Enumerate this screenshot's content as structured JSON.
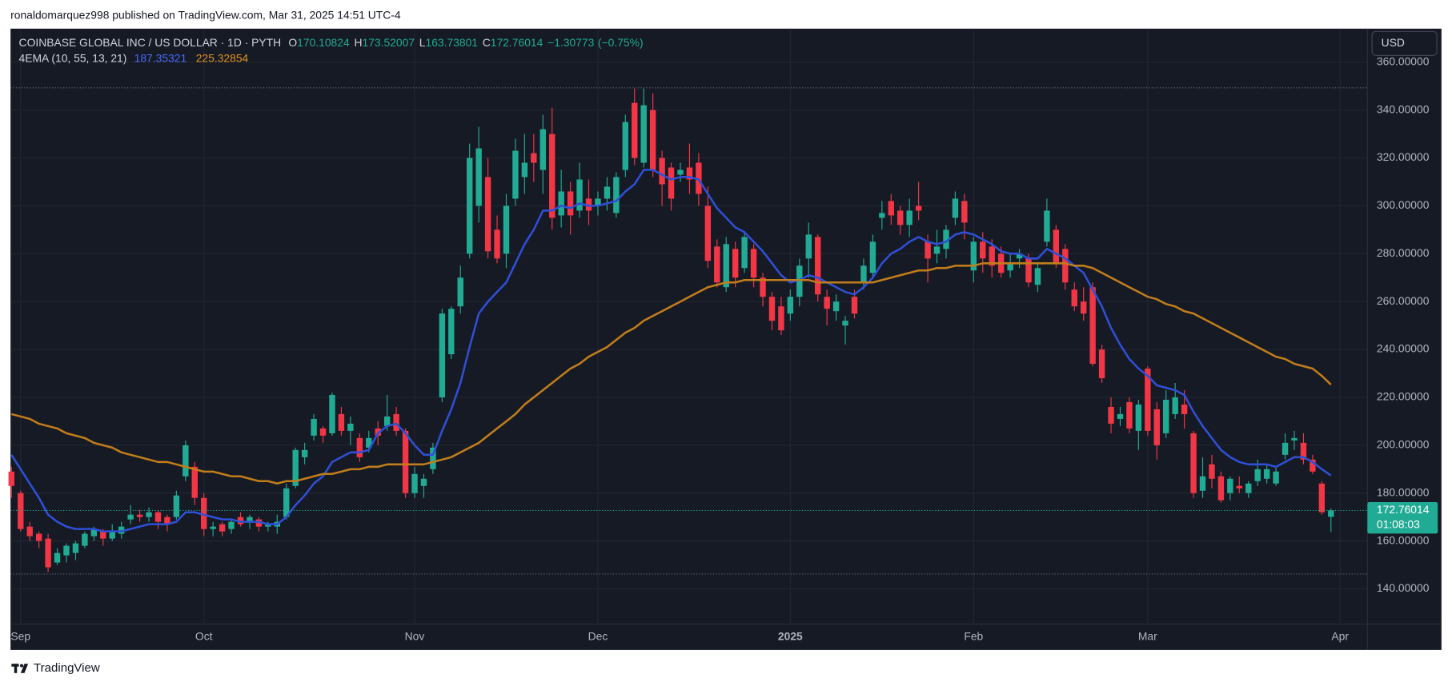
{
  "header": {
    "publisher": "ronaldomarquez998 published on TradingView.com, Mar 31, 2025 14:51 UTC-4",
    "currency": "USD",
    "countdown": "01:08:03",
    "brand": "TradingView"
  },
  "chart_data": {
    "type": "candlestick",
    "title": "COINBASE GLOBAL INC / US DOLLAR · 1D · PYTH",
    "ohlc_labels": [
      "O",
      "H",
      "L",
      "C"
    ],
    "change": {
      "value": -1.30773,
      "label": "−1.30773"
    },
    "change_pct": {
      "value": -0.75,
      "label": "(−0.75%)"
    },
    "indicator": "4EMA (10, 55, 13, 21)",
    "up_color": "#22ab94",
    "down_color": "#f23645",
    "categories": [
      null,
      "Sep",
      null,
      null,
      null,
      null,
      null,
      null,
      null,
      null,
      null,
      null,
      null,
      null,
      null,
      null,
      null,
      null,
      null,
      null,
      null,
      "Oct",
      null,
      null,
      null,
      null,
      null,
      null,
      null,
      null,
      null,
      null,
      null,
      null,
      null,
      null,
      null,
      null,
      null,
      null,
      null,
      null,
      null,
      null,
      "Nov",
      null,
      null,
      null,
      null,
      null,
      null,
      null,
      null,
      null,
      null,
      null,
      null,
      null,
      null,
      null,
      null,
      null,
      null,
      null,
      "Dec",
      null,
      null,
      null,
      null,
      null,
      null,
      null,
      null,
      null,
      null,
      null,
      null,
      null,
      null,
      null,
      null,
      null,
      null,
      null,
      null,
      "2025",
      null,
      null,
      null,
      null,
      null,
      null,
      null,
      null,
      null,
      null,
      null,
      null,
      null,
      null,
      null,
      null,
      null,
      null,
      null,
      "Feb",
      null,
      null,
      null,
      null,
      null,
      null,
      null,
      null,
      null,
      null,
      null,
      null,
      null,
      null,
      null,
      null,
      null,
      null,
      "Mar",
      null,
      null,
      null,
      null,
      null,
      null,
      null,
      null,
      null,
      null,
      null,
      null,
      null,
      null,
      null,
      null,
      null,
      null,
      null,
      null
    ],
    "next_label": "Apr",
    "open": [
      189,
      180,
      166,
      163,
      161,
      151,
      154,
      155,
      158,
      162,
      164,
      161,
      163,
      169,
      171,
      170,
      172,
      170,
      170,
      187,
      191,
      178,
      165,
      167,
      165,
      170,
      168,
      169,
      166,
      166,
      170,
      183,
      195,
      204,
      207,
      205,
      213,
      206,
      203,
      199,
      207,
      208,
      213,
      206,
      180,
      183,
      190,
      220,
      238,
      258,
      280,
      300,
      312,
      290,
      280,
      303,
      312,
      322,
      315,
      330,
      296,
      306,
      298,
      303,
      300,
      303,
      297,
      315,
      343,
      318,
      340,
      320,
      316,
      313,
      316,
      318,
      300,
      283,
      266,
      282,
      274,
      282,
      270,
      262,
      258,
      255,
      262,
      278,
      287,
      262,
      256,
      250,
      262,
      268,
      272,
      295,
      302,
      298,
      292,
      300,
      285,
      280,
      282,
      295,
      302,
      273,
      285,
      283,
      280,
      273,
      278,
      278,
      267,
      285,
      290,
      282,
      265,
      260,
      266,
      240,
      216,
      211,
      218,
      206,
      232,
      215,
      205,
      213,
      217,
      205,
      181,
      192,
      187,
      180,
      183,
      180,
      185,
      186,
      184,
      196,
      202,
      201,
      194,
      184,
      170.10824
    ],
    "high": [
      191,
      181,
      168,
      164,
      163,
      157,
      159,
      160,
      164,
      166,
      165,
      167,
      168,
      175,
      173,
      174,
      173,
      171,
      181,
      202,
      193,
      180,
      168,
      168,
      169,
      172,
      171,
      170,
      168,
      171,
      184,
      199,
      201,
      213,
      208,
      222,
      216,
      212,
      205,
      206,
      210,
      221,
      216,
      207,
      191,
      188,
      201,
      257,
      258,
      275,
      326,
      333,
      320,
      296,
      305,
      328,
      330,
      330,
      338,
      341,
      315,
      310,
      318,
      311,
      306,
      312,
      314,
      338,
      349,
      349,
      347,
      323,
      318,
      318,
      326,
      322,
      308,
      286,
      287,
      285,
      289,
      284,
      272,
      264,
      262,
      265,
      278,
      293,
      288,
      265,
      263,
      254,
      265,
      278,
      288,
      302,
      305,
      300,
      303,
      310,
      288,
      290,
      292,
      306,
      305,
      287,
      289,
      286,
      283,
      280,
      282,
      280,
      276,
      303,
      292,
      284,
      268,
      266,
      268,
      242,
      220,
      216,
      220,
      219,
      233,
      218,
      223,
      226,
      223,
      206,
      195,
      196,
      189,
      187,
      187,
      185,
      194,
      192,
      191,
      205,
      206,
      205,
      196,
      185,
      173.52007
    ],
    "low": [
      178,
      164,
      160,
      157,
      147,
      150,
      151,
      152,
      157,
      160,
      158,
      160,
      161,
      167,
      168,
      168,
      165,
      164,
      169,
      185,
      175,
      162,
      162,
      162,
      163,
      166,
      165,
      164,
      164,
      163,
      169,
      182,
      192,
      202,
      201,
      204,
      204,
      200,
      193,
      197,
      200,
      206,
      204,
      178,
      178,
      178,
      188,
      218,
      236,
      255,
      278,
      293,
      278,
      276,
      274,
      300,
      305,
      310,
      305,
      290,
      291,
      288,
      295,
      292,
      296,
      298,
      295,
      312,
      317,
      316,
      312,
      300,
      298,
      310,
      305,
      300,
      274,
      266,
      264,
      266,
      272,
      266,
      258,
      248,
      246,
      252,
      258,
      270,
      260,
      250,
      252,
      242,
      253,
      265,
      270,
      290,
      292,
      288,
      287,
      294,
      268,
      276,
      278,
      292,
      286,
      268,
      272,
      270,
      270,
      270,
      274,
      266,
      264,
      283,
      274,
      265,
      256,
      252,
      233,
      226,
      205,
      208,
      205,
      198,
      204,
      194,
      203,
      211,
      207,
      178,
      178,
      182,
      176,
      177,
      180,
      178,
      183,
      184,
      183,
      194,
      198,
      192,
      188,
      171,
      163.73801
    ],
    "close": [
      183,
      165,
      162,
      160,
      149,
      155,
      158,
      159,
      163,
      165,
      161,
      164,
      166,
      171,
      170,
      172,
      168,
      167,
      179,
      200,
      178,
      165,
      166,
      164,
      168,
      167,
      170,
      166,
      167,
      168,
      182,
      198,
      198,
      211,
      204,
      221,
      206,
      209,
      195,
      203,
      204,
      212,
      206,
      180,
      188,
      186,
      199,
      255,
      257,
      270,
      320,
      324,
      281,
      278,
      300,
      323,
      318,
      318,
      332,
      295,
      306,
      296,
      311,
      298,
      303,
      308,
      312,
      335,
      320,
      342,
      315,
      309,
      303,
      315,
      311,
      305,
      277,
      268,
      284,
      270,
      287,
      270,
      262,
      252,
      248,
      262,
      275,
      288,
      263,
      257,
      260,
      252,
      255,
      275,
      285,
      297,
      296,
      292,
      298,
      298,
      278,
      283,
      290,
      303,
      293,
      285,
      278,
      275,
      272,
      276,
      280,
      268,
      274,
      298,
      276,
      268,
      258,
      255,
      234,
      228,
      209,
      213,
      207,
      217,
      206,
      200,
      219,
      220,
      213,
      180,
      187,
      186,
      177,
      186,
      182,
      184,
      190,
      190,
      189,
      201,
      203,
      194,
      189,
      172,
      172.76014
    ],
    "series": [
      {
        "color": "#2f4fd6",
        "values": [
          196,
          190,
          184,
          178,
          171,
          168,
          166,
          165,
          165,
          165,
          164,
          164,
          164,
          165,
          166,
          167,
          167,
          167,
          168,
          172,
          172,
          171,
          170,
          169,
          169,
          168,
          168,
          168,
          167,
          167,
          170,
          175,
          179,
          184,
          187,
          193,
          195,
          197,
          197,
          198,
          205,
          208,
          209,
          205,
          200,
          196,
          196,
          206,
          215,
          226,
          241,
          255,
          260,
          264,
          268,
          276,
          284,
          290,
          298,
          298,
          300,
          299,
          301,
          300,
          300,
          301,
          302,
          306,
          309,
          315,
          315,
          313,
          311,
          312,
          312,
          311,
          305,
          299,
          295,
          291,
          289,
          285,
          281,
          276,
          271,
          268,
          269,
          271,
          270,
          268,
          266,
          264,
          263,
          266,
          270,
          276,
          280,
          282,
          285,
          287,
          285,
          284,
          285,
          288,
          289,
          288,
          286,
          284,
          281,
          280,
          280,
          278,
          278,
          282,
          280,
          278,
          275,
          272,
          265,
          258,
          249,
          242,
          236,
          232,
          229,
          225,
          224,
          223,
          221,
          214,
          208,
          203,
          198,
          195,
          193,
          192,
          192,
          192,
          191,
          193,
          195,
          195,
          193,
          190,
          187.35321
        ]
      },
      {
        "color": "#c17d1a",
        "values": [
          213,
          212,
          211,
          209,
          208,
          207,
          205,
          204,
          203,
          201,
          200,
          199,
          197,
          196,
          195,
          194,
          193,
          193,
          192,
          191,
          190,
          189,
          189,
          188,
          187,
          187,
          186,
          185,
          185,
          184,
          185,
          185,
          186,
          187,
          188,
          188,
          189,
          190,
          190,
          191,
          191,
          192,
          192,
          192,
          192,
          192,
          193,
          194,
          195,
          197,
          199,
          201,
          204,
          207,
          210,
          213,
          217,
          220,
          223,
          226,
          229,
          232,
          234,
          237,
          239,
          241,
          244,
          247,
          249,
          252,
          254,
          256,
          258,
          260,
          262,
          264,
          266,
          267,
          268,
          268,
          269,
          269,
          269,
          269,
          269,
          269,
          269,
          269,
          268,
          268,
          268,
          268,
          268,
          268,
          268,
          269,
          270,
          271,
          272,
          273,
          273,
          274,
          274,
          275,
          275,
          275,
          276,
          276,
          276,
          276,
          276,
          276,
          276,
          276,
          276,
          276,
          275,
          275,
          274,
          272,
          270,
          268,
          266,
          264,
          262,
          261,
          259,
          258,
          256,
          255,
          253,
          251,
          249,
          247,
          245,
          243,
          241,
          239,
          237,
          236,
          234,
          233,
          232,
          229,
          225.32854
        ]
      }
    ],
    "range_lines": [
      349.3,
      146.2
    ],
    "ylim": [
      125.3,
      374
    ],
    "yticks": [
      {
        "value": 140,
        "label": "140.00000"
      },
      {
        "value": 160,
        "label": "160.00000"
      },
      {
        "value": 180,
        "label": "180.00000"
      },
      {
        "value": 200,
        "label": "200.00000"
      },
      {
        "value": 220,
        "label": "220.00000"
      },
      {
        "value": 240,
        "label": "240.00000"
      },
      {
        "value": 260,
        "label": "260.00000"
      },
      {
        "value": 280,
        "label": "280.00000"
      },
      {
        "value": 300,
        "label": "300.00000"
      },
      {
        "value": 320,
        "label": "320.00000"
      },
      {
        "value": 340,
        "label": "340.00000"
      },
      {
        "value": 360,
        "label": "360.00000"
      }
    ],
    "grid": true
  }
}
